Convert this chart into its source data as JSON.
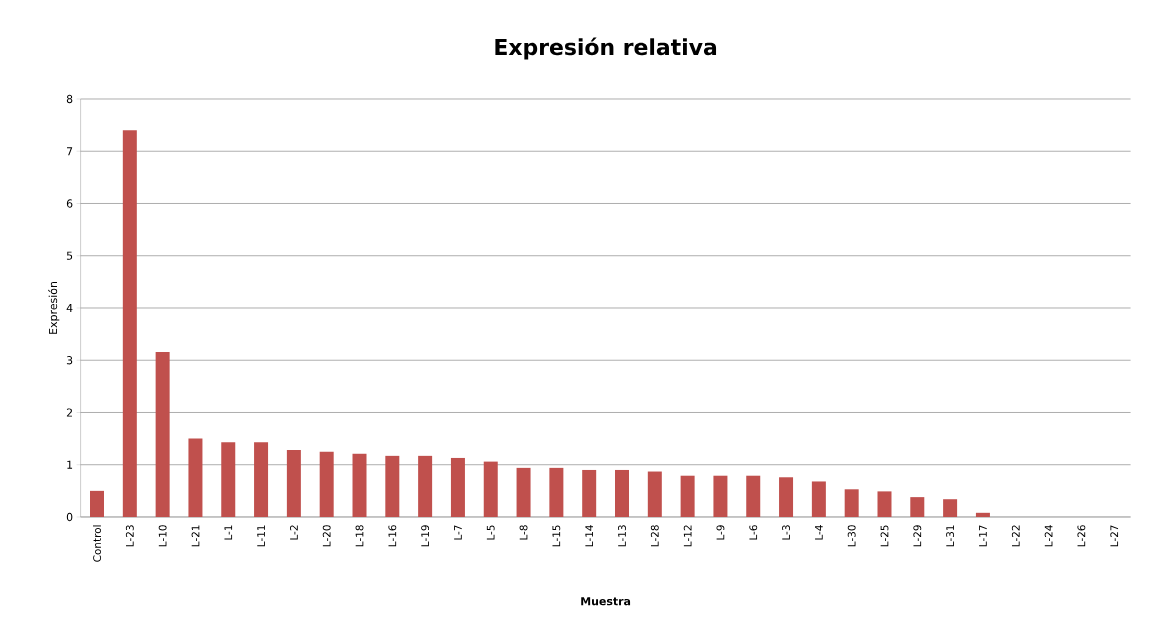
{
  "chart_data": {
    "type": "bar",
    "title": "Expresión relativa",
    "xlabel": "Muestra",
    "ylabel": "Expresión",
    "categories": [
      "Control",
      "L-23",
      "L-10",
      "L-21",
      "L-1",
      "L-11",
      "L-2",
      "L-20",
      "L-18",
      "L-16",
      "L-19",
      "L-7",
      "L-5",
      "L-8",
      "L-15",
      "L-14",
      "L-13",
      "L-28",
      "L-12",
      "L-9",
      "L-6",
      "L-3",
      "L-4",
      "L-30",
      "L-25",
      "L-29",
      "L-31",
      "L-17",
      "L-22",
      "L-24",
      "L-26",
      "L-27"
    ],
    "values": [
      0.5,
      7.4,
      3.16,
      1.5,
      1.43,
      1.43,
      1.28,
      1.25,
      1.21,
      1.17,
      1.17,
      1.13,
      1.06,
      0.94,
      0.94,
      0.9,
      0.9,
      0.87,
      0.79,
      0.79,
      0.79,
      0.76,
      0.68,
      0.53,
      0.49,
      0.38,
      0.34,
      0.08,
      0,
      0,
      0,
      0
    ],
    "color": "#c0504d",
    "ylim": [
      0,
      8
    ],
    "yticks": [
      0,
      1,
      2,
      3,
      4,
      5,
      6,
      7,
      8
    ],
    "grid": "y"
  }
}
